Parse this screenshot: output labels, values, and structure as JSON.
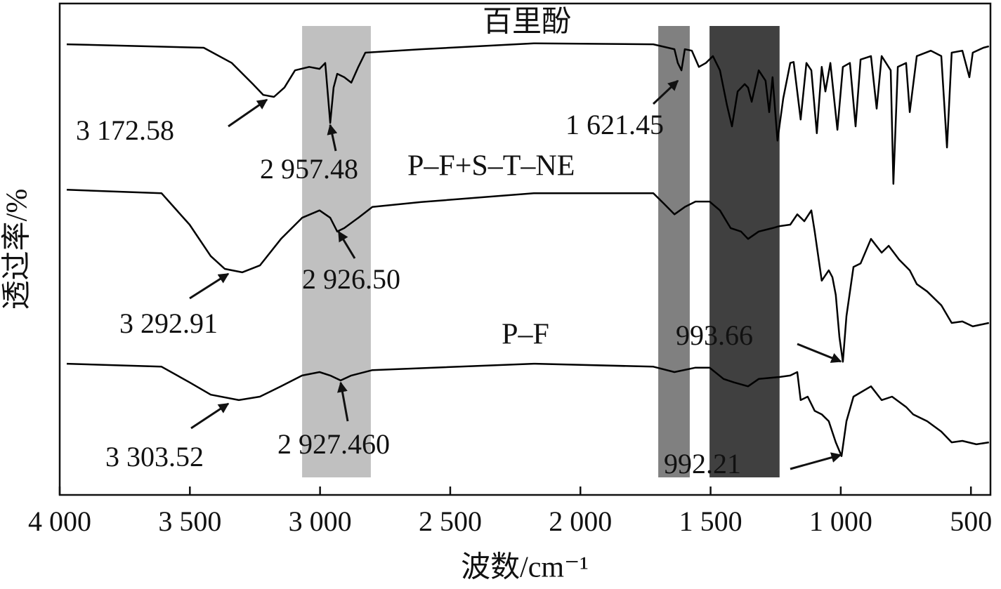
{
  "chart_data": {
    "type": "line",
    "xlabel": "波数/cm⁻¹",
    "ylabel": "透过率/%",
    "xlim": [
      4000,
      425
    ],
    "ylim": [
      0,
      100
    ],
    "xticks": [
      {
        "value": 4000,
        "label": "4 000"
      },
      {
        "value": 3500,
        "label": "3 500"
      },
      {
        "value": 3000,
        "label": "3 000"
      },
      {
        "value": 2500,
        "label": "2 500"
      },
      {
        "value": 2000,
        "label": "2 000"
      },
      {
        "value": 1500,
        "label": "1 500"
      },
      {
        "value": 1000,
        "label": "1 000"
      },
      500
    ],
    "bands": [
      {
        "range": [
          3069,
          2805
        ],
        "color": "#c0c0c0"
      },
      {
        "range": [
          1701,
          1580
        ],
        "color": "#808080"
      },
      {
        "range": [
          1504,
          1235
        ],
        "color": "#404040"
      }
    ],
    "series": [
      {
        "name": "百里酚",
        "color": "#000000",
        "x": [
          3973,
          3447,
          3339,
          3258,
          3218,
          3177,
          3137,
          3096,
          3042,
          3002,
          2980,
          2961,
          2948,
          2934,
          2907,
          2880,
          2853,
          2826,
          2611,
          2179,
          1720,
          1639,
          1626,
          1612,
          1599,
          1572,
          1545,
          1518,
          1491,
          1464,
          1437,
          1418,
          1396,
          1369,
          1356,
          1342,
          1315,
          1289,
          1275,
          1262,
          1243,
          1221,
          1194,
          1181,
          1154,
          1132,
          1113,
          1092,
          1073,
          1059,
          1040,
          1013,
          992,
          965,
          943,
          924,
          884,
          862,
          843,
          808,
          798,
          781,
          749,
          735,
          708,
          654,
          614,
          592,
          574,
          533,
          506,
          493,
          452,
          431
        ],
        "values": [
          91.7,
          91.0,
          87.9,
          83.6,
          81.4,
          81.0,
          82.9,
          86.4,
          87.1,
          86.7,
          87.9,
          75.7,
          82.9,
          85.7,
          85.0,
          83.9,
          87.1,
          90.0,
          90.7,
          91.9,
          91.7,
          90.7,
          87.9,
          86.4,
          90.7,
          90.4,
          87.1,
          87.9,
          89.3,
          86.4,
          79.3,
          75.0,
          82.1,
          83.6,
          82.9,
          80.0,
          86.4,
          84.3,
          77.9,
          85.0,
          72.1,
          80.7,
          87.9,
          88.1,
          76.4,
          87.9,
          86.4,
          73.6,
          87.1,
          82.1,
          87.9,
          74.3,
          87.1,
          87.9,
          75.0,
          88.6,
          89.3,
          78.6,
          89.3,
          86.4,
          63.3,
          87.1,
          87.9,
          77.9,
          89.3,
          90.4,
          89.3,
          70.7,
          90.0,
          90.4,
          85.0,
          90.0,
          91.0,
          91.3
        ]
      },
      {
        "name": "P–F+S–T–NE",
        "color": "#000000",
        "x": [
          3973,
          3609,
          3501,
          3420,
          3366,
          3299,
          3231,
          3150,
          3069,
          3002,
          2961,
          2934,
          2907,
          2853,
          2799,
          2611,
          2179,
          1720,
          1680,
          1639,
          1599,
          1558,
          1504,
          1464,
          1423,
          1383,
          1356,
          1315,
          1262,
          1235,
          1194,
          1167,
          1140,
          1113,
          1100,
          1073,
          1046,
          1032,
          1019,
          1005,
          992,
          978,
          951,
          924,
          884,
          843,
          816,
          776,
          735,
          708,
          668,
          614,
          574,
          533,
          493,
          431
        ],
        "values": [
          62.1,
          61.4,
          55.0,
          48.6,
          46.0,
          45.3,
          46.7,
          52.1,
          56.4,
          57.9,
          56.4,
          53.6,
          54.3,
          56.4,
          58.6,
          59.6,
          61.4,
          61.4,
          59.3,
          57.1,
          58.6,
          59.7,
          59.7,
          57.9,
          54.3,
          53.6,
          52.1,
          53.6,
          54.3,
          54.7,
          55.0,
          57.1,
          55.7,
          57.9,
          53.6,
          43.6,
          45.7,
          44.3,
          40.7,
          32.1,
          27.1,
          36.4,
          46.4,
          47.1,
          52.1,
          49.3,
          50.7,
          47.9,
          45.7,
          42.9,
          41.4,
          38.6,
          35.0,
          35.3,
          34.3,
          35.0
        ]
      },
      {
        "name": "P–F",
        "color": "#000000",
        "x": [
          3973,
          3609,
          3501,
          3420,
          3312,
          3231,
          3150,
          3069,
          3002,
          2961,
          2921,
          2880,
          2799,
          2179,
          1720,
          1639,
          1558,
          1504,
          1450,
          1410,
          1356,
          1315,
          1235,
          1194,
          1167,
          1154,
          1127,
          1100,
          1073,
          1046,
          1019,
          997,
          978,
          951,
          884,
          843,
          803,
          749,
          722,
          668,
          614,
          574,
          533,
          479,
          431
        ],
        "values": [
          26.7,
          26.1,
          22.9,
          20.4,
          19.3,
          20.0,
          22.1,
          24.3,
          25.0,
          24.3,
          23.3,
          24.3,
          25.4,
          26.7,
          26.1,
          25.0,
          25.9,
          25.9,
          23.6,
          22.9,
          22.1,
          23.6,
          24.0,
          24.3,
          25.0,
          19.3,
          20.0,
          17.1,
          16.4,
          15.0,
          10.7,
          7.9,
          15.0,
          20.0,
          22.1,
          19.3,
          20.0,
          17.9,
          16.4,
          15.0,
          12.9,
          10.7,
          11.0,
          10.3,
          10.7
        ]
      }
    ],
    "annotations": [
      {
        "text": "3 172.58"
      },
      {
        "text": "2 957.48"
      },
      {
        "text": "1 621.45"
      },
      {
        "text": "2 926.50"
      },
      {
        "text": "3 292.91"
      },
      {
        "text": "993.66"
      },
      {
        "text": "3 303.52"
      },
      {
        "text": "2 927.460"
      },
      {
        "text": "992.21"
      }
    ]
  }
}
